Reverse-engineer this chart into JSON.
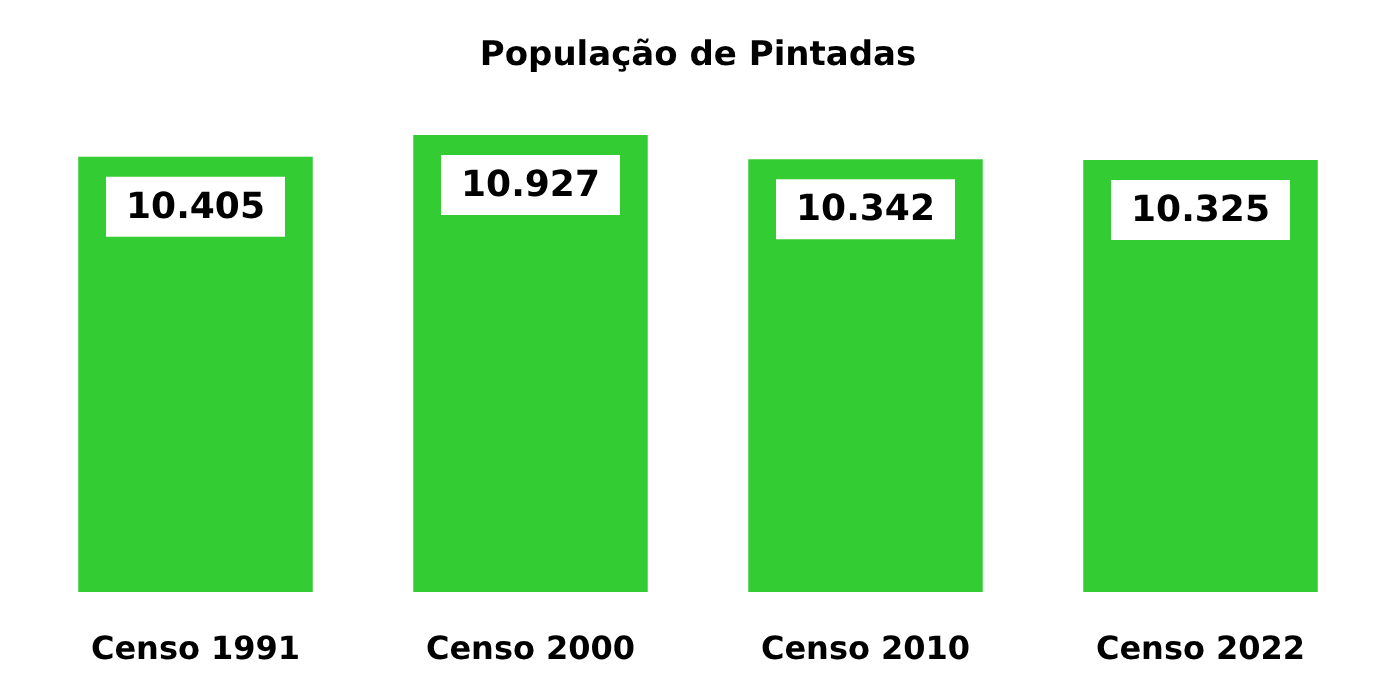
{
  "chart_data": {
    "type": "bar",
    "title": "População de Pintadas",
    "categories": [
      "Censo 1991",
      "Censo 2000",
      "Censo 2010",
      "Censo 2022"
    ],
    "values": [
      10405,
      10927,
      10342,
      10325
    ],
    "color": "#33cc33",
    "value_labels": [
      "10.405",
      "10.927",
      "10.342",
      "10.325"
    ],
    "tick_labels": "x",
    "grid": false
  }
}
